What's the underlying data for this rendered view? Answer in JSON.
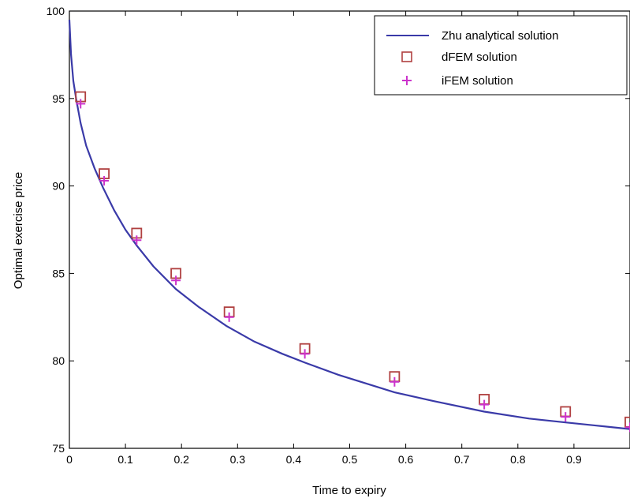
{
  "chart_data": {
    "type": "line",
    "title": "",
    "xlabel": "Time to expiry",
    "ylabel": "Optimal exercise price",
    "xlim": [
      0,
      1
    ],
    "ylim": [
      75,
      100
    ],
    "grid": false,
    "legend": "top-right",
    "x_ticks": [
      "0",
      "0.1",
      "0.2",
      "0.3",
      "0.4",
      "0.5",
      "0.6",
      "0.7",
      "0.8",
      "0.9"
    ],
    "y_ticks": [
      "75",
      "80",
      "85",
      "90",
      "95",
      "100"
    ],
    "series": [
      {
        "name": "Zhu analytical solution",
        "style": "line",
        "color": "#3a3aa8",
        "x": [
          0.0,
          0.003,
          0.007,
          0.012,
          0.02,
          0.03,
          0.045,
          0.06,
          0.08,
          0.1,
          0.12,
          0.15,
          0.19,
          0.23,
          0.28,
          0.33,
          0.38,
          0.42,
          0.48,
          0.54,
          0.58,
          0.65,
          0.74,
          0.82,
          0.88,
          0.94,
          1.0
        ],
        "y": [
          99.5,
          97.5,
          96.0,
          95.0,
          93.6,
          92.3,
          91.0,
          89.9,
          88.6,
          87.5,
          86.6,
          85.4,
          84.1,
          83.1,
          82.0,
          81.1,
          80.4,
          79.9,
          79.2,
          78.6,
          78.2,
          77.7,
          77.1,
          76.7,
          76.5,
          76.3,
          76.1
        ]
      },
      {
        "name": "dFEM solution",
        "style": "square",
        "color": "#b04040",
        "x": [
          0.02,
          0.062,
          0.12,
          0.19,
          0.285,
          0.42,
          0.58,
          0.74,
          0.885,
          1.0
        ],
        "y": [
          95.1,
          90.7,
          87.3,
          85.0,
          82.8,
          80.7,
          79.1,
          77.8,
          77.1,
          76.5
        ]
      },
      {
        "name": "iFEM solution",
        "style": "plus",
        "color": "#cc33cc",
        "x": [
          0.02,
          0.062,
          0.12,
          0.19,
          0.285,
          0.42,
          0.58,
          0.74,
          0.885,
          1.0
        ],
        "y": [
          94.7,
          90.3,
          86.9,
          84.6,
          82.5,
          80.4,
          78.8,
          77.5,
          76.8,
          76.2
        ]
      }
    ]
  }
}
